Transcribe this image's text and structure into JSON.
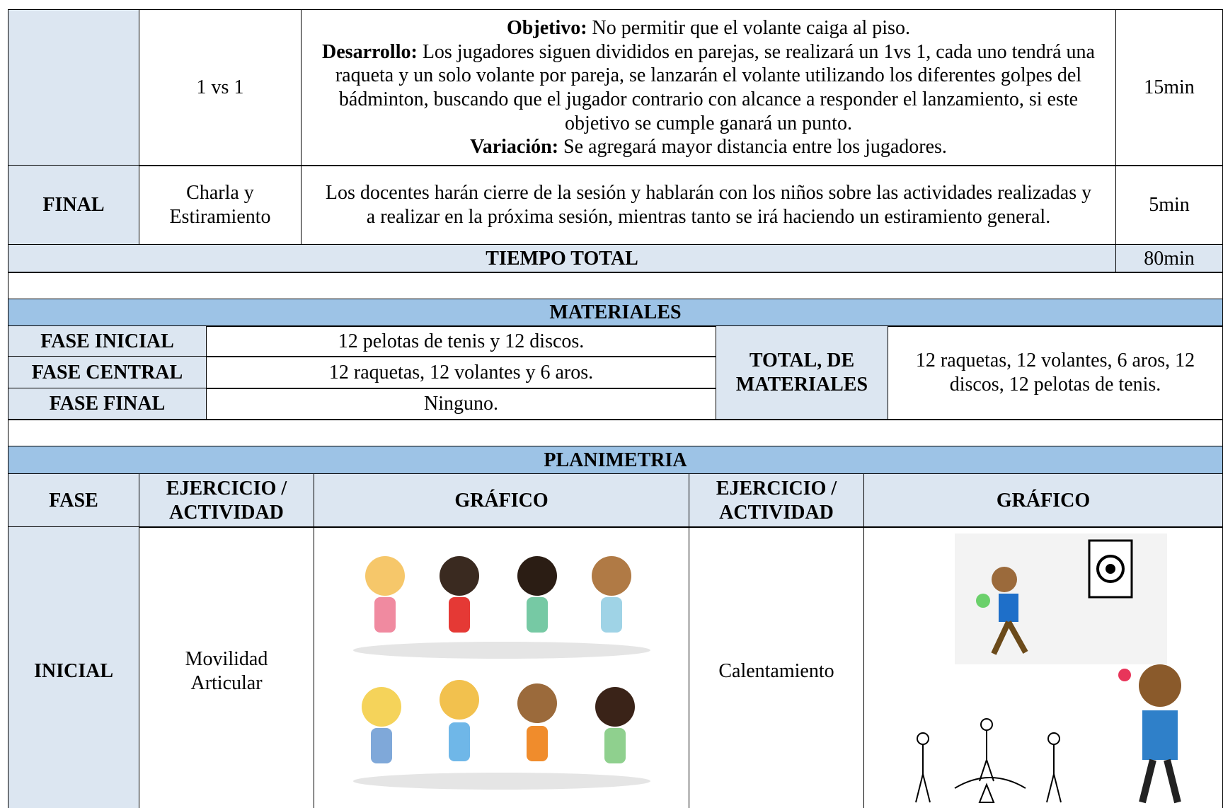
{
  "plan_table": {
    "rows": [
      {
        "activity": "1 vs 1",
        "description": [
          {
            "label": "Objetivo:",
            "text": "No permitir que el volante caiga al piso."
          },
          {
            "label": "Desarrollo:",
            "text": "Los jugadores siguen divididos en parejas, se realizará un 1vs 1, cada uno tendrá una raqueta y un solo volante por pareja, se lanzarán el volante utilizando los diferentes golpes del bádminton, buscando que el jugador contrario con alcance a responder el lanzamiento, si este objetivo se cumple ganará un punto."
          },
          {
            "label": "Variación:",
            "text": "Se agregará mayor distancia entre los jugadores."
          }
        ],
        "duration": "15min"
      },
      {
        "phase": "FINAL",
        "activity": "Charla y Estiramiento",
        "description_text": "Los docentes harán cierre de la sesión y hablarán con los niños sobre las actividades realizadas y a realizar en la próxima sesión, mientras tanto se irá haciendo un estiramiento general.",
        "duration": "5min"
      }
    ],
    "total": {
      "label": "TIEMPO TOTAL",
      "value": "80min"
    }
  },
  "materials": {
    "title": "MATERIALES",
    "rows": [
      {
        "label": "FASE INICIAL",
        "value": "12 pelotas de tenis y 12 discos."
      },
      {
        "label": "FASE CENTRAL",
        "value": "12 raquetas, 12 volantes y 6 aros."
      },
      {
        "label": "FASE FINAL",
        "value": "Ninguno."
      }
    ],
    "total_label": "TOTAL, DE MATERIALES",
    "total_value": "12 raquetas, 12 volantes, 6 aros, 12 discos, 12 pelotas de tenis."
  },
  "planimetry": {
    "title": "PLANIMETRIA",
    "headers": [
      "FASE",
      "EJERCICIO / ACTIVIDAD",
      "GRÁFICO",
      "EJERCICIO / ACTIVIDAD",
      "GRÁFICO"
    ],
    "row": {
      "phase": "INICIAL",
      "activity_1": "Movilidad Articular",
      "activity_2": "Calentamiento"
    }
  }
}
